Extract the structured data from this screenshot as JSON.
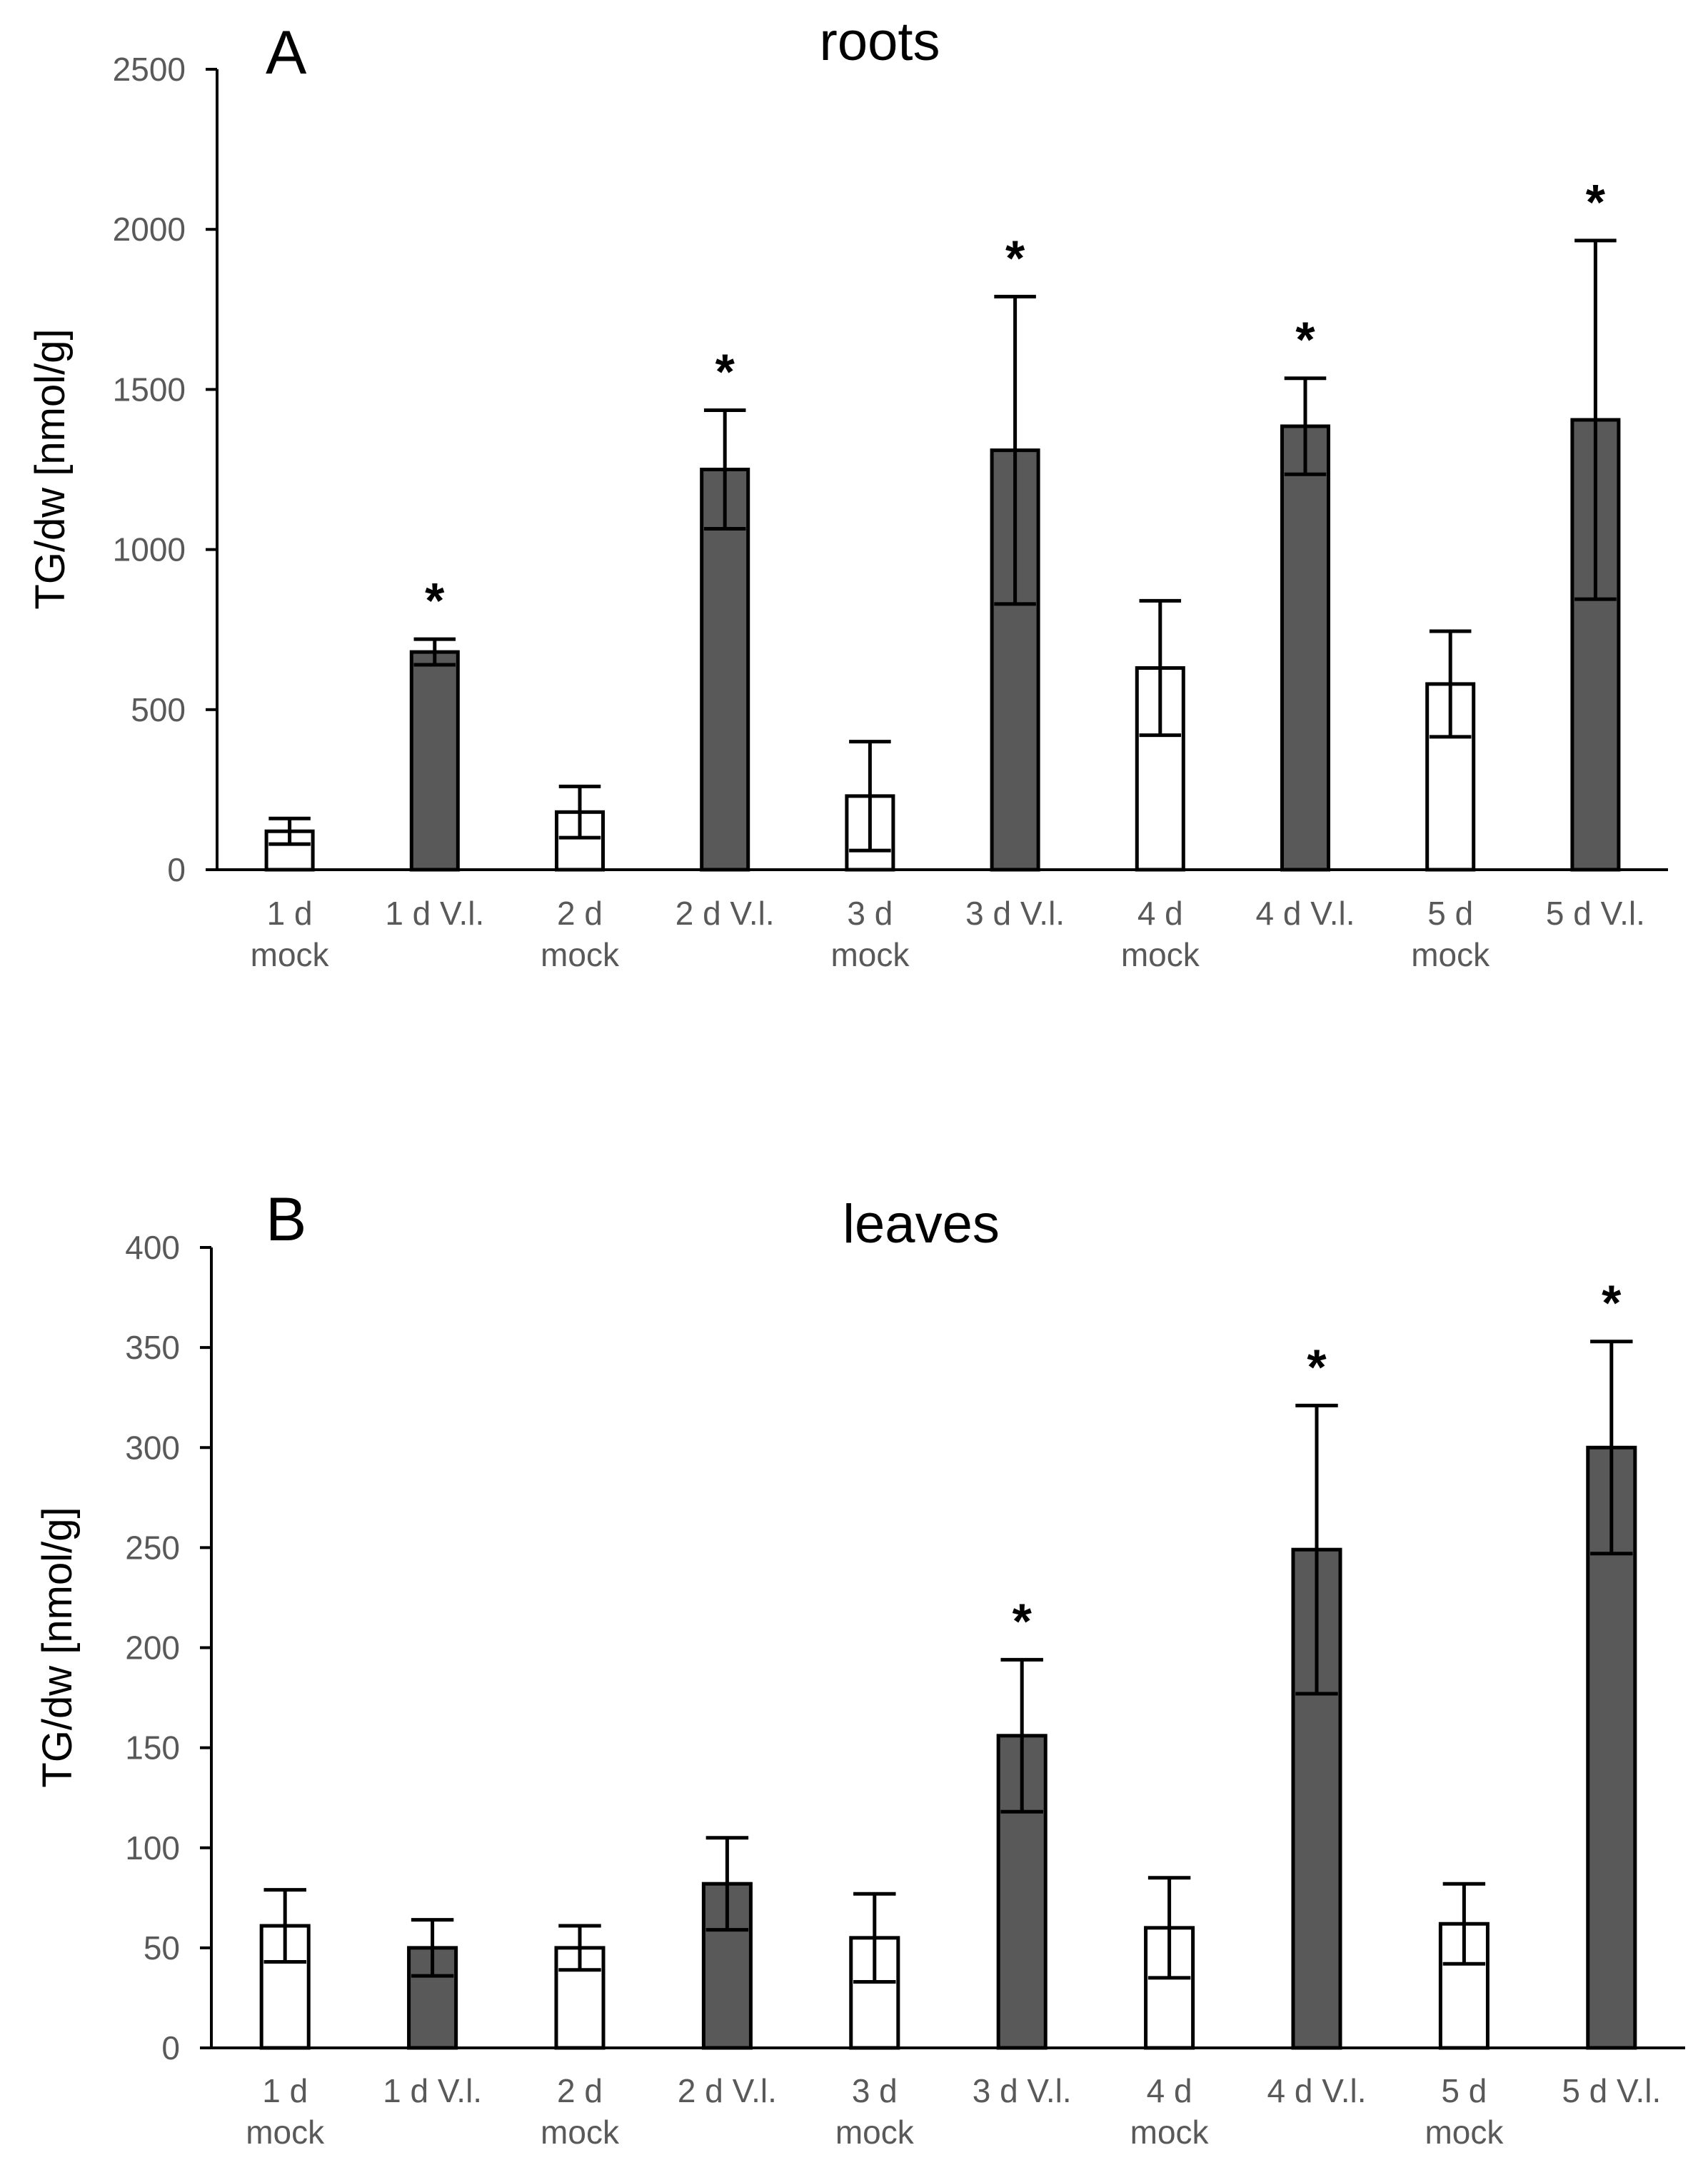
{
  "chart_data": [
    {
      "type": "bar",
      "panel": "A",
      "title": "roots",
      "xlabel": "",
      "ylabel": "TG/dw [nmol/g]",
      "ylim": [
        0,
        2500
      ],
      "yticks": [
        "0",
        "500",
        "1000",
        "1500",
        "2000",
        "2500"
      ],
      "ytick_values": [
        0,
        500,
        1000,
        1500,
        2000,
        2500
      ],
      "categories": [
        [
          "1 d",
          "mock"
        ],
        [
          "1 d V.l."
        ],
        [
          "2 d",
          "mock"
        ],
        [
          "2 d V.l."
        ],
        [
          "3 d",
          "mock"
        ],
        [
          "3 d V.l."
        ],
        [
          "4 d",
          "mock"
        ],
        [
          "4 d V.l."
        ],
        [
          "5 d",
          "mock"
        ],
        [
          "5 d V.l."
        ]
      ],
      "values": [
        120,
        680,
        180,
        1250,
        230,
        1310,
        630,
        1385,
        580,
        1405
      ],
      "errors": [
        40,
        40,
        80,
        185,
        170,
        480,
        210,
        150,
        165,
        560
      ],
      "significance": [
        "",
        "*",
        "",
        "*",
        "",
        "*",
        "",
        "*",
        "",
        "*"
      ],
      "bar_styles": [
        "mock",
        "vl",
        "mock",
        "vl",
        "mock",
        "vl",
        "mock",
        "vl",
        "mock",
        "vl"
      ],
      "grid": false
    },
    {
      "type": "bar",
      "panel": "B",
      "title": "leaves",
      "xlabel": "",
      "ylabel": "TG/dw [nmol/g]",
      "ylim": [
        0,
        400
      ],
      "yticks": [
        "0",
        "50",
        "100",
        "150",
        "200",
        "250",
        "300",
        "350",
        "400"
      ],
      "ytick_values": [
        0,
        50,
        100,
        150,
        200,
        250,
        300,
        350,
        400
      ],
      "categories": [
        [
          "1 d",
          "mock"
        ],
        [
          "1 d V.l."
        ],
        [
          "2 d",
          "mock"
        ],
        [
          "2 d V.l."
        ],
        [
          "3 d",
          "mock"
        ],
        [
          "3 d V.l."
        ],
        [
          "4 d",
          "mock"
        ],
        [
          "4 d V.l."
        ],
        [
          "5 d",
          "mock"
        ],
        [
          "5 d V.l."
        ]
      ],
      "values": [
        61,
        50,
        50,
        82,
        55,
        156,
        60,
        249,
        62,
        300
      ],
      "errors": [
        18,
        14,
        11,
        23,
        22,
        38,
        25,
        72,
        20,
        53
      ],
      "significance": [
        "",
        "",
        "",
        "",
        "",
        "*",
        "",
        "*",
        "",
        "*"
      ],
      "bar_styles": [
        "mock",
        "vl",
        "mock",
        "vl",
        "mock",
        "vl",
        "mock",
        "vl",
        "mock",
        "vl"
      ],
      "grid": false
    }
  ],
  "colors": {
    "mock_fill": "#ffffff",
    "vl_fill": "#595959",
    "bar_stroke": "#000000",
    "axis": "#000000",
    "tick_text": "#595959"
  }
}
